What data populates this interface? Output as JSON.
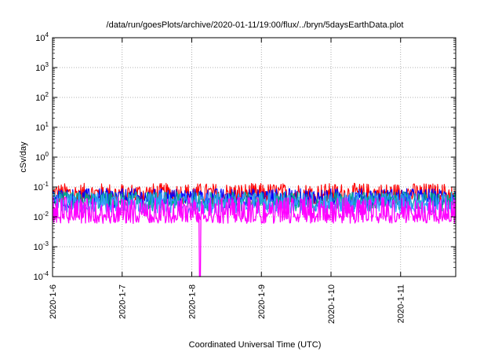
{
  "chart_data": {
    "type": "line",
    "title": "/data/run/goesPlots/archive/2020-01-11/19:00/flux/../bryn/5daysEarthData.plot",
    "xlabel": "Coordinated Universal Time (UTC)",
    "ylabel": "cSv/day",
    "y_scale": "log",
    "ylim": [
      0.0001,
      10000
    ],
    "y_ticks": [
      {
        "value": 0.0001,
        "base": "10",
        "exp": "-4"
      },
      {
        "value": 0.001,
        "base": "10",
        "exp": "-3"
      },
      {
        "value": 0.01,
        "base": "10",
        "exp": "-2"
      },
      {
        "value": 0.1,
        "base": "10",
        "exp": "-1"
      },
      {
        "value": 1,
        "base": "10",
        "exp": "0"
      },
      {
        "value": 10,
        "base": "10",
        "exp": "1"
      },
      {
        "value": 100,
        "base": "10",
        "exp": "2"
      },
      {
        "value": 1000,
        "base": "10",
        "exp": "3"
      },
      {
        "value": 10000,
        "base": "10",
        "exp": "4"
      }
    ],
    "x_range_days": [
      "2020-01-06",
      "2020-01-11T19:00"
    ],
    "x_ticks": [
      "2020-1-6",
      "2020-1-7",
      "2020-1-8",
      "2020-1-9",
      "2020-1-10",
      "2020-1-11"
    ],
    "grid": true,
    "series": [
      {
        "color": "#ff0000",
        "level": 0.06,
        "spread": 0.35
      },
      {
        "color": "#0000ff",
        "level": 0.045,
        "spread": 0.3
      },
      {
        "color": "#00aa88",
        "level": 0.035,
        "spread": 0.3
      },
      {
        "color": "#3399ff",
        "level": 0.03,
        "spread": 0.35
      },
      {
        "color": "#ff00ff",
        "level": 0.009,
        "spread": 0.25
      }
    ],
    "features": {
      "magenta_dropout_day": "2020-01-08T02:30",
      "magenta_dropout_min": 0.0001
    }
  }
}
